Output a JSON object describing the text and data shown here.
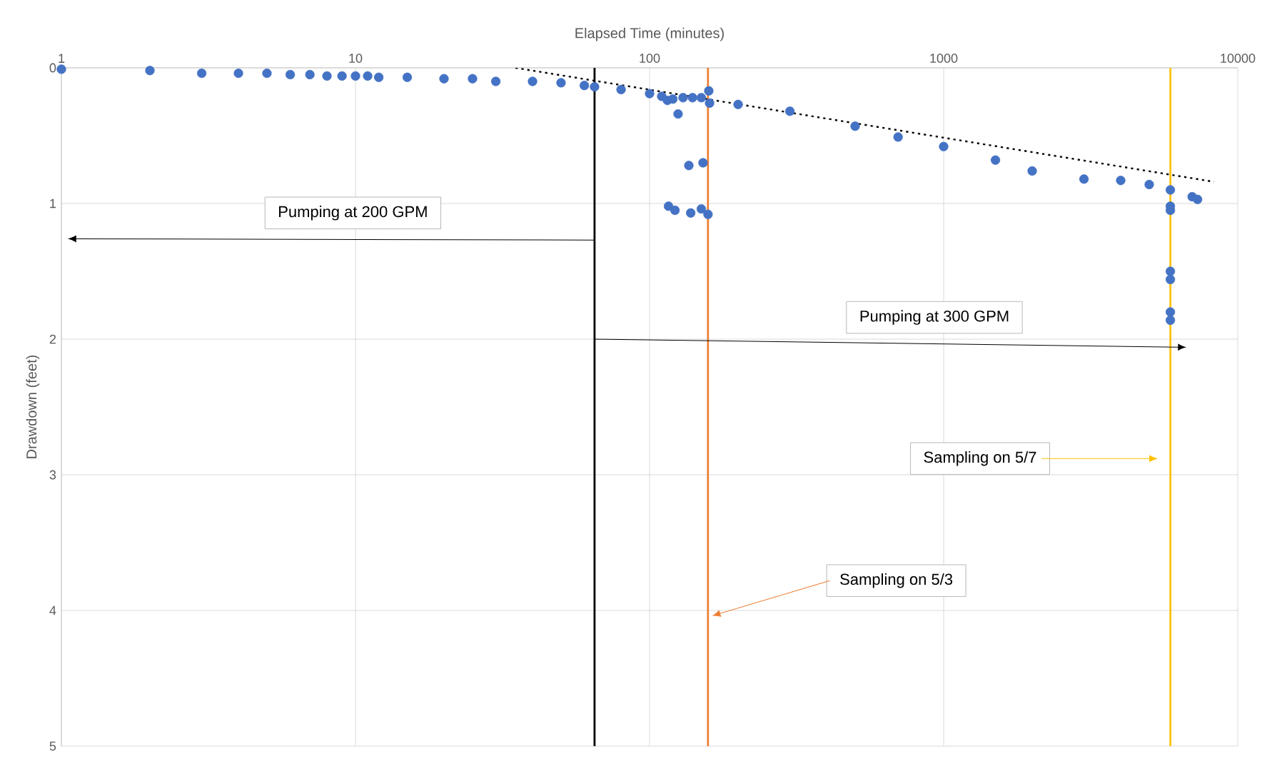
{
  "chart_data": {
    "type": "scatter",
    "xlabel": "Elapsed Time (minutes)",
    "ylabel": "Drawdown (feet)",
    "log": "x",
    "xlim": [
      1,
      10000
    ],
    "xticks": [
      1,
      10,
      100,
      1000,
      10000
    ],
    "ylim": [
      5,
      0
    ],
    "yticks": [
      0,
      1,
      2,
      3,
      4,
      5
    ],
    "grid": true,
    "marker": "circle",
    "series": [
      {
        "color": "#4472c4",
        "x": [
          1,
          2,
          3,
          4,
          5,
          6,
          7,
          8,
          9,
          10,
          11,
          12,
          15,
          20,
          25,
          30,
          40,
          50,
          60,
          65,
          80,
          100,
          110,
          115,
          120,
          125,
          130,
          140,
          150,
          159,
          160,
          136,
          152,
          116,
          122,
          138,
          150,
          158,
          200,
          300,
          500,
          700,
          1000,
          1500,
          2000,
          3000,
          4000,
          5000,
          5900,
          7000,
          7300,
          5900,
          5900,
          5900,
          5900,
          5900,
          5900
        ],
        "values": [
          0.01,
          0.02,
          0.04,
          0.04,
          0.04,
          0.05,
          0.05,
          0.06,
          0.06,
          0.06,
          0.06,
          0.07,
          0.07,
          0.08,
          0.08,
          0.1,
          0.1,
          0.11,
          0.13,
          0.14,
          0.16,
          0.19,
          0.21,
          0.24,
          0.23,
          0.34,
          0.22,
          0.22,
          0.22,
          0.17,
          0.26,
          0.72,
          0.7,
          1.02,
          1.05,
          1.07,
          1.04,
          1.08,
          0.27,
          0.32,
          0.43,
          0.51,
          0.58,
          0.68,
          0.76,
          0.82,
          0.83,
          0.86,
          0.9,
          0.95,
          0.97,
          1.02,
          1.05,
          1.5,
          1.56,
          1.8,
          1.86
        ]
      },
      {
        "type": "line",
        "color": "#000000",
        "line_style": "dotted",
        "marker": "none",
        "x": [
          35,
          8300
        ],
        "values": [
          0,
          0.84
        ]
      }
    ],
    "ref_lines": [
      {
        "axis": "x",
        "value": 65,
        "color": "#000000"
      },
      {
        "axis": "x",
        "value": 158,
        "color": "#ed7d31"
      },
      {
        "axis": "x",
        "value": 5900,
        "color": "#ffc000"
      }
    ],
    "annotations": [
      "Pumping at 200 GPM",
      "Pumping at 300 GPM",
      "Sampling on 5/7",
      "Sampling on 5/3"
    ]
  }
}
